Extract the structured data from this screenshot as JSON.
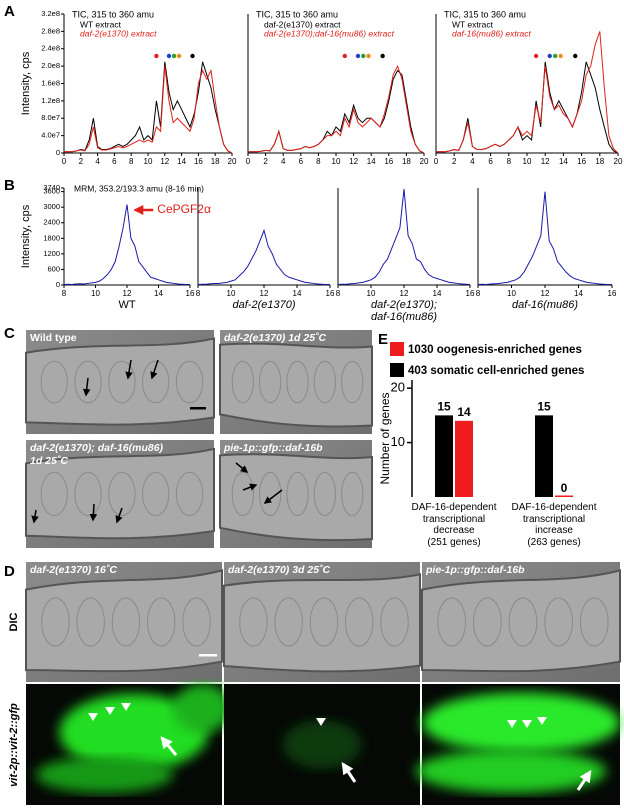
{
  "panel_labels": [
    "A",
    "B",
    "C",
    "D",
    "E"
  ],
  "chart_data": [
    {
      "type": "line",
      "title": "TIC, 315 to 360 amu",
      "ylabel": "Intensity, cps",
      "xlim": [
        0,
        20
      ],
      "xticks": [
        0,
        2,
        4,
        6,
        8,
        10,
        12,
        14,
        16,
        18,
        20
      ],
      "ylim": [
        0,
        320000000.0
      ],
      "yticks": [
        0,
        {
          "value": 40000000.0,
          "label": "4.0e7"
        },
        {
          "value": 80000000.0,
          "label": "8.0e7"
        },
        {
          "value": 120000000.0,
          "label": "1.2e8"
        },
        {
          "value": 160000000.0,
          "label": "1.6e8"
        },
        {
          "value": 200000000.0,
          "label": "2.0e8"
        },
        {
          "value": 240000000.0,
          "label": "2.4e8"
        },
        {
          "value": 280000000.0,
          "label": "2.8e8"
        },
        {
          "value": 320000000.0,
          "label": "3.2e8"
        }
      ],
      "x": [
        0,
        0.5,
        1,
        1.5,
        2,
        2.5,
        3,
        3.5,
        4,
        4.5,
        5,
        5.5,
        6,
        6.5,
        7,
        7.5,
        8,
        8.5,
        9,
        9.5,
        10,
        10.5,
        11,
        11.5,
        12,
        12.5,
        13,
        13.5,
        14,
        14.5,
        15,
        15.5,
        16,
        16.5,
        17,
        17.5,
        18,
        18.5,
        19,
        19.5,
        20
      ],
      "series": [
        {
          "name": "WT extract",
          "color": "#000000",
          "values": [
            3000000.0,
            3000000.0,
            3000000.0,
            5000000.0,
            8000000.0,
            6000000.0,
            30000000.0,
            80000000.0,
            15000000.0,
            8000000.0,
            8000000.0,
            10000000.0,
            15000000.0,
            20000000.0,
            15000000.0,
            20000000.0,
            30000000.0,
            40000000.0,
            60000000.0,
            30000000.0,
            40000000.0,
            30000000.0,
            120000000.0,
            60000000.0,
            210000000.0,
            140000000.0,
            100000000.0,
            120000000.0,
            100000000.0,
            80000000.0,
            60000000.0,
            90000000.0,
            140000000.0,
            210000000.0,
            180000000.0,
            150000000.0,
            100000000.0,
            60000000.0,
            20000000.0,
            5000000.0,
            0
          ]
        },
        {
          "name": "daf-2(e1370) extract",
          "color": "#e0201b",
          "values": [
            3000000.0,
            3000000.0,
            3000000.0,
            5000000.0,
            7000000.0,
            5000000.0,
            20000000.0,
            60000000.0,
            12000000.0,
            7000000.0,
            7000000.0,
            9000000.0,
            12000000.0,
            15000000.0,
            12000000.0,
            15000000.0,
            20000000.0,
            25000000.0,
            30000000.0,
            25000000.0,
            30000000.0,
            25000000.0,
            60000000.0,
            50000000.0,
            200000000.0,
            120000000.0,
            70000000.0,
            80000000.0,
            70000000.0,
            60000000.0,
            50000000.0,
            80000000.0,
            160000000.0,
            190000000.0,
            170000000.0,
            190000000.0,
            120000000.0,
            60000000.0,
            20000000.0,
            5000000.0,
            0
          ]
        }
      ]
    },
    {
      "type": "line",
      "title": "TIC, 315 to 360 amu",
      "xlim": [
        0,
        20
      ],
      "xticks": [
        0,
        2,
        4,
        6,
        8,
        10,
        12,
        14,
        16,
        18,
        20
      ],
      "ylim": [
        0,
        320000000.0
      ],
      "x": [
        0,
        0.5,
        1,
        1.5,
        2,
        2.5,
        3,
        3.5,
        4,
        4.5,
        5,
        5.5,
        6,
        6.5,
        7,
        7.5,
        8,
        8.5,
        9,
        9.5,
        10,
        10.5,
        11,
        11.5,
        12,
        12.5,
        13,
        13.5,
        14,
        14.5,
        15,
        15.5,
        16,
        16.5,
        17,
        17.5,
        18,
        18.5,
        19,
        19.5,
        20
      ],
      "series": [
        {
          "name": "daf-2(e1370) extract",
          "color": "#000000",
          "values": [
            3000000.0,
            3000000.0,
            3000000.0,
            4000000.0,
            6000000.0,
            5000000.0,
            20000000.0,
            50000000.0,
            10000000.0,
            6000000.0,
            6000000.0,
            8000000.0,
            10000000.0,
            15000000.0,
            12000000.0,
            15000000.0,
            20000000.0,
            30000000.0,
            50000000.0,
            40000000.0,
            60000000.0,
            50000000.0,
            90000000.0,
            70000000.0,
            110000000.0,
            80000000.0,
            70000000.0,
            80000000.0,
            80000000.0,
            70000000.0,
            60000000.0,
            80000000.0,
            120000000.0,
            170000000.0,
            190000000.0,
            180000000.0,
            120000000.0,
            60000000.0,
            20000000.0,
            5000000.0,
            0
          ]
        },
        {
          "name": "daf-2(e1370);daf-16(mu86) extract",
          "color": "#e0201b",
          "values": [
            3000000.0,
            3000000.0,
            3000000.0,
            4000000.0,
            6000000.0,
            5000000.0,
            20000000.0,
            50000000.0,
            10000000.0,
            6000000.0,
            6000000.0,
            8000000.0,
            10000000.0,
            15000000.0,
            12000000.0,
            15000000.0,
            20000000.0,
            30000000.0,
            40000000.0,
            40000000.0,
            50000000.0,
            40000000.0,
            80000000.0,
            60000000.0,
            100000000.0,
            70000000.0,
            60000000.0,
            70000000.0,
            80000000.0,
            70000000.0,
            60000000.0,
            90000000.0,
            130000000.0,
            180000000.0,
            200000000.0,
            170000000.0,
            110000000.0,
            50000000.0,
            20000000.0,
            5000000.0,
            0
          ]
        }
      ]
    },
    {
      "type": "line",
      "title": "TIC, 315 to 360 amu",
      "xlim": [
        0,
        20
      ],
      "xticks": [
        0,
        2,
        4,
        6,
        8,
        10,
        12,
        14,
        16,
        18,
        20
      ],
      "ylim": [
        0,
        320000000.0
      ],
      "x": [
        0,
        0.5,
        1,
        1.5,
        2,
        2.5,
        3,
        3.5,
        4,
        4.5,
        5,
        5.5,
        6,
        6.5,
        7,
        7.5,
        8,
        8.5,
        9,
        9.5,
        10,
        10.5,
        11,
        11.5,
        12,
        12.5,
        13,
        13.5,
        14,
        14.5,
        15,
        15.5,
        16,
        16.5,
        17,
        17.5,
        18,
        18.5,
        19,
        19.5,
        20
      ],
      "series": [
        {
          "name": "WT extract",
          "color": "#000000",
          "values": [
            3000000.0,
            3000000.0,
            3000000.0,
            5000000.0,
            8000000.0,
            6000000.0,
            30000000.0,
            80000000.0,
            15000000.0,
            8000000.0,
            8000000.0,
            10000000.0,
            15000000.0,
            20000000.0,
            15000000.0,
            20000000.0,
            30000000.0,
            40000000.0,
            60000000.0,
            30000000.0,
            40000000.0,
            30000000.0,
            120000000.0,
            60000000.0,
            210000000.0,
            140000000.0,
            100000000.0,
            120000000.0,
            100000000.0,
            80000000.0,
            60000000.0,
            90000000.0,
            140000000.0,
            210000000.0,
            180000000.0,
            150000000.0,
            100000000.0,
            60000000.0,
            20000000.0,
            5000000.0,
            0
          ]
        },
        {
          "name": "daf-16(mu86) extract",
          "color": "#e0201b",
          "values": [
            3000000.0,
            3000000.0,
            3000000.0,
            5000000.0,
            8000000.0,
            6000000.0,
            30000000.0,
            70000000.0,
            15000000.0,
            8000000.0,
            8000000.0,
            10000000.0,
            15000000.0,
            20000000.0,
            15000000.0,
            20000000.0,
            30000000.0,
            40000000.0,
            60000000.0,
            40000000.0,
            50000000.0,
            40000000.0,
            110000000.0,
            70000000.0,
            200000000.0,
            130000000.0,
            100000000.0,
            110000000.0,
            90000000.0,
            80000000.0,
            60000000.0,
            90000000.0,
            120000000.0,
            180000000.0,
            200000000.0,
            250000000.0,
            280000000.0,
            150000000.0,
            40000000.0,
            10000000.0,
            0
          ]
        }
      ]
    },
    {
      "type": "line",
      "subtitle": "MRM, 353.2/193.3 amu  (8-16 min)",
      "ylabel": "Intensity, cps",
      "xlabel": "WT",
      "annotation": "CePGF2α",
      "xlim": [
        8,
        16
      ],
      "xticks": [
        8,
        10,
        12,
        14,
        16
      ],
      "ylim": [
        0,
        3740
      ],
      "yticks": [
        0,
        600,
        1200,
        1800,
        2400,
        3000,
        3600,
        3740
      ],
      "x": [
        8,
        8.25,
        8.5,
        8.75,
        9,
        9.25,
        9.5,
        9.75,
        10,
        10.25,
        10.5,
        10.75,
        11,
        11.25,
        11.5,
        11.75,
        12,
        12.25,
        12.5,
        12.75,
        13,
        13.25,
        13.5,
        13.75,
        14,
        14.25,
        14.5,
        14.75,
        15,
        15.25,
        15.5,
        15.75,
        16
      ],
      "series": [
        {
          "color": "#1a1aaa",
          "values": [
            20,
            30,
            20,
            40,
            50,
            40,
            60,
            80,
            100,
            150,
            250,
            400,
            600,
            900,
            1500,
            2200,
            3100,
            1800,
            1500,
            900,
            700,
            500,
            300,
            250,
            200,
            150,
            100,
            80,
            60,
            40,
            30,
            20,
            20
          ]
        }
      ]
    },
    {
      "type": "line",
      "xlabel": "daf-2(e1370)",
      "xlim": [
        8,
        16
      ],
      "xticks": [
        8,
        10,
        12,
        14,
        16
      ],
      "ylim": [
        0,
        3740
      ],
      "x": [
        8,
        8.25,
        8.5,
        8.75,
        9,
        9.25,
        9.5,
        9.75,
        10,
        10.25,
        10.5,
        10.75,
        11,
        11.25,
        11.5,
        11.75,
        12,
        12.25,
        12.5,
        12.75,
        13,
        13.25,
        13.5,
        13.75,
        14,
        14.25,
        14.5,
        14.75,
        15,
        15.25,
        15.5,
        15.75,
        16
      ],
      "series": [
        {
          "color": "#1a1aaa",
          "values": [
            20,
            30,
            30,
            50,
            60,
            60,
            80,
            100,
            150,
            200,
            350,
            500,
            700,
            1000,
            1300,
            1700,
            2100,
            1500,
            1200,
            800,
            600,
            400,
            300,
            250,
            200,
            150,
            100,
            80,
            60,
            40,
            30,
            20,
            20
          ]
        }
      ]
    },
    {
      "type": "line",
      "xlabel": "daf-2(e1370);\ndaf-16(mu86)",
      "xlim": [
        8,
        16
      ],
      "xticks": [
        8,
        10,
        12,
        14,
        16
      ],
      "ylim": [
        0,
        3740
      ],
      "x": [
        8,
        8.25,
        8.5,
        8.75,
        9,
        9.25,
        9.5,
        9.75,
        10,
        10.25,
        10.5,
        10.75,
        11,
        11.25,
        11.5,
        11.75,
        12,
        12.25,
        12.5,
        12.75,
        13,
        13.25,
        13.5,
        13.75,
        14,
        14.25,
        14.5,
        14.75,
        15,
        15.25,
        15.5,
        15.75,
        16
      ],
      "series": [
        {
          "color": "#1a1aaa",
          "values": [
            20,
            30,
            30,
            50,
            60,
            80,
            100,
            150,
            200,
            300,
            500,
            800,
            1000,
            1400,
            1800,
            2200,
            3700,
            1900,
            1600,
            1000,
            900,
            600,
            400,
            300,
            250,
            200,
            150,
            100,
            80,
            60,
            40,
            30,
            20
          ]
        }
      ]
    },
    {
      "type": "line",
      "xlabel": "daf-16(mu86)",
      "xlim": [
        8,
        16
      ],
      "xticks": [
        8,
        10,
        12,
        14,
        16
      ],
      "ylim": [
        0,
        3740
      ],
      "x": [
        8,
        8.25,
        8.5,
        8.75,
        9,
        9.25,
        9.5,
        9.75,
        10,
        10.25,
        10.5,
        10.75,
        11,
        11.25,
        11.5,
        11.75,
        12,
        12.25,
        12.5,
        12.75,
        13,
        13.25,
        13.5,
        13.75,
        14,
        14.25,
        14.5,
        14.75,
        15,
        15.25,
        15.5,
        15.75,
        16
      ],
      "series": [
        {
          "color": "#1a1aaa",
          "values": [
            20,
            30,
            20,
            40,
            50,
            60,
            80,
            100,
            150,
            200,
            300,
            500,
            800,
            1100,
            1500,
            1900,
            3600,
            1700,
            1400,
            900,
            700,
            500,
            350,
            250,
            200,
            150,
            100,
            80,
            60,
            40,
            30,
            20,
            20
          ]
        }
      ]
    },
    {
      "type": "bar",
      "ylabel": "Number of genes",
      "ylim": [
        0,
        21.5
      ],
      "yticks": [
        10,
        20
      ],
      "categories": [
        "DAF-16-dependent\ntranscriptional\ndecrease\n(251 genes)",
        "DAF-16-dependent\ntranscriptional\nincrease\n(263 genes)"
      ],
      "series": [
        {
          "name": "1030 oogenesis-enriched genes",
          "color": "#ee1c1c",
          "values": [
            14,
            0
          ]
        },
        {
          "name": "403 somatic cell-enriched genes",
          "color": "#000000",
          "values": [
            15,
            15
          ]
        }
      ]
    }
  ],
  "micrographs_c": [
    [
      "Wild type"
    ],
    [
      "daf-2(e1370) 1d 25˚C"
    ],
    [
      "daf-2(e1370); daf-16(mu86)",
      "1d 25˚C"
    ],
    [
      "pie-1p::gfp::daf-16b"
    ]
  ],
  "micrographs_d": {
    "columns": [
      "daf-2(e1370) 16˚C",
      "daf-2(e1370) 3d 25˚C",
      "pie-1p::gfp::daf-16b"
    ],
    "rows": [
      "DIC",
      "vit-2p::vit-2::gfp"
    ]
  }
}
